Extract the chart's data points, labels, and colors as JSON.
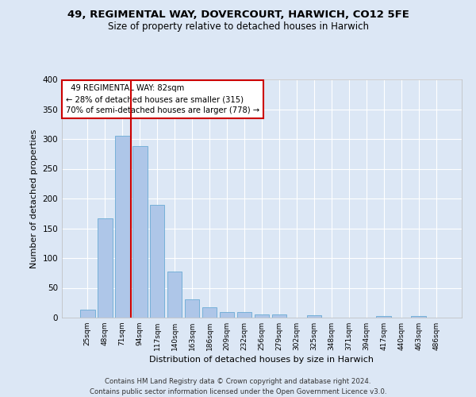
{
  "title1": "49, REGIMENTAL WAY, DOVERCOURT, HARWICH, CO12 5FE",
  "title2": "Size of property relative to detached houses in Harwich",
  "xlabel": "Distribution of detached houses by size in Harwich",
  "ylabel": "Number of detached properties",
  "footnote1": "Contains HM Land Registry data © Crown copyright and database right 2024.",
  "footnote2": "Contains public sector information licensed under the Open Government Licence v3.0.",
  "categories": [
    "25sqm",
    "48sqm",
    "71sqm",
    "94sqm",
    "117sqm",
    "140sqm",
    "163sqm",
    "186sqm",
    "209sqm",
    "232sqm",
    "256sqm",
    "279sqm",
    "302sqm",
    "325sqm",
    "348sqm",
    "371sqm",
    "394sqm",
    "417sqm",
    "440sqm",
    "463sqm",
    "486sqm"
  ],
  "values": [
    14,
    167,
    305,
    288,
    190,
    77,
    31,
    18,
    9,
    9,
    5,
    5,
    0,
    4,
    0,
    0,
    0,
    3,
    0,
    3,
    0
  ],
  "bar_color": "#aec6e8",
  "bar_edge_color": "#6aaad4",
  "vline_color": "#cc0000",
  "annotation_box_color": "#cc0000",
  "ylim": [
    0,
    400
  ],
  "yticks": [
    0,
    50,
    100,
    150,
    200,
    250,
    300,
    350,
    400
  ],
  "background_color": "#dce7f5",
  "plot_bg_color": "#dce7f5",
  "grid_color": "#ffffff",
  "property_label": "49 REGIMENTAL WAY: 82sqm",
  "smaller_pct": 28,
  "smaller_n": 315,
  "larger_pct": 70,
  "larger_n": 778,
  "vline_x": 2.5
}
